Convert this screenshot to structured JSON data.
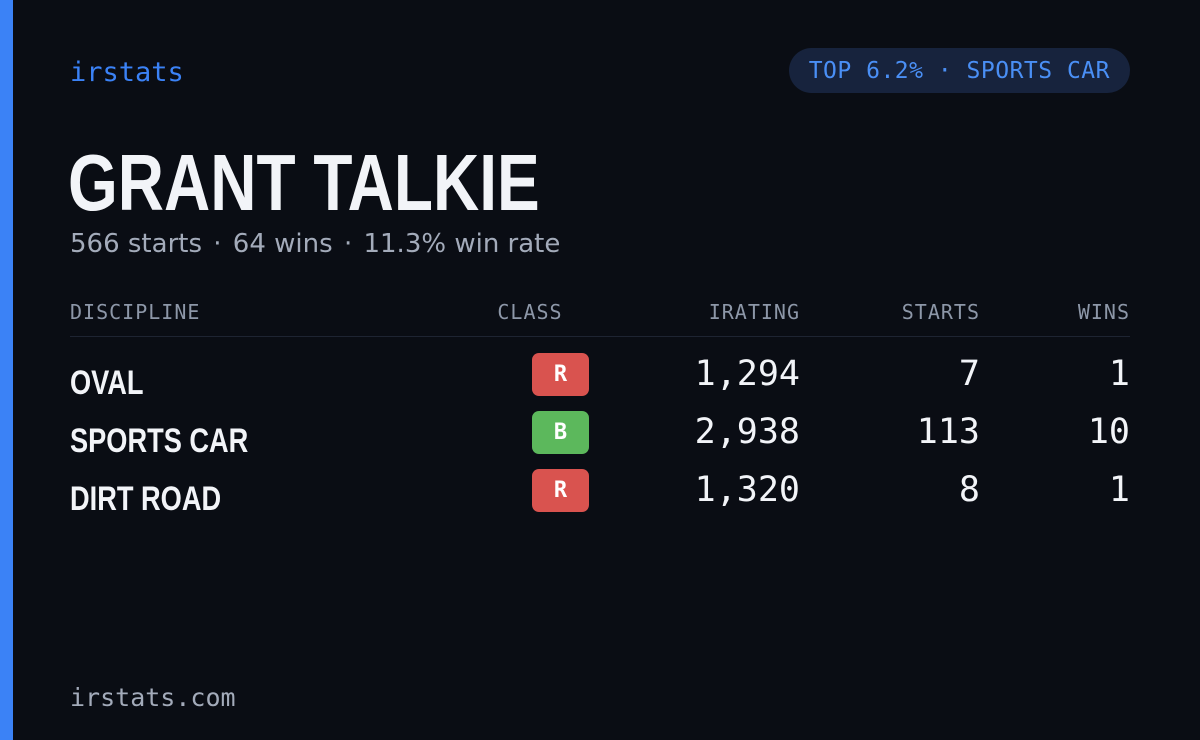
{
  "brand": "irstats",
  "rank_badge": "TOP 6.2% · SPORTS CAR",
  "driver": {
    "name": "GRANT TALKIE"
  },
  "summary": {
    "starts": "566 starts",
    "wins": "64 wins",
    "win_rate": "11.3% win rate",
    "separator": "·"
  },
  "table": {
    "headers": {
      "discipline": "DISCIPLINE",
      "class": "CLASS",
      "irating": "IRATING",
      "starts": "STARTS",
      "wins": "WINS"
    },
    "rows": [
      {
        "discipline": "OVAL",
        "class": "R",
        "class_color": "#d9534f",
        "irating": "1,294",
        "starts": "7",
        "wins": "1"
      },
      {
        "discipline": "SPORTS CAR",
        "class": "B",
        "class_color": "#5cb85c",
        "irating": "2,938",
        "starts": "113",
        "wins": "10"
      },
      {
        "discipline": "DIRT ROAD",
        "class": "R",
        "class_color": "#d9534f",
        "irating": "1,320",
        "starts": "8",
        "wins": "1"
      }
    ]
  },
  "footer": "irstats.com",
  "colors": {
    "background": "#0a0d14",
    "accent": "#3b82f6",
    "pill_background": "#17233d"
  }
}
